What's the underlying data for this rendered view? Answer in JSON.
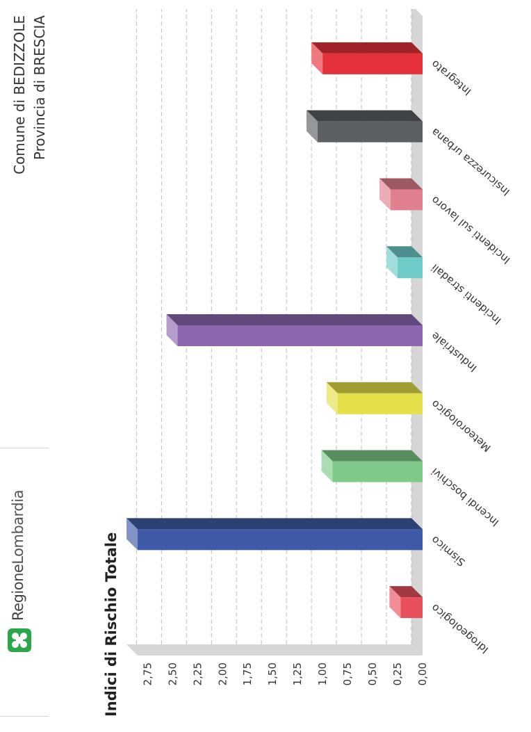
{
  "header": {
    "brand": {
      "part1": "Regione",
      "part2": "Lombardia"
    },
    "municipality": "Comune di BEDIZZOLE",
    "province": "Provincia di BRESCIA"
  },
  "colors": {
    "brand_green": "#2aa64b",
    "axis_wall": "#d6d6d6",
    "grid": "#bdbdbd"
  },
  "chart_data": {
    "type": "bar",
    "orientation": "vertical-3d",
    "title": "Indici di Rischio Totale",
    "xlabel": "",
    "ylabel": "",
    "ylim": [
      0,
      2.85
    ],
    "yticks": [
      "0,00",
      "0,25",
      "0,50",
      "0,75",
      "1,00",
      "1,25",
      "1,50",
      "1,75",
      "2,00",
      "2,25",
      "2,50",
      "2,75"
    ],
    "grid": true,
    "legend": "none",
    "categories": [
      "Idrogeologico",
      "Sismico",
      "Incendi boschivi",
      "Meteorologico",
      "Industriale",
      "Incidenti stradali",
      "Incidenti sul lavoro",
      "Insicurezza urbana",
      "Integrato"
    ],
    "values": [
      0.22,
      2.85,
      0.9,
      0.85,
      2.45,
      0.25,
      0.32,
      1.05,
      1.0
    ],
    "colors": [
      "#e8505e",
      "#3f5ba8",
      "#7fc98a",
      "#e4e04a",
      "#8c68b0",
      "#6fcbc8",
      "#e07f8e",
      "#5c5f63",
      "#e5323a"
    ]
  }
}
